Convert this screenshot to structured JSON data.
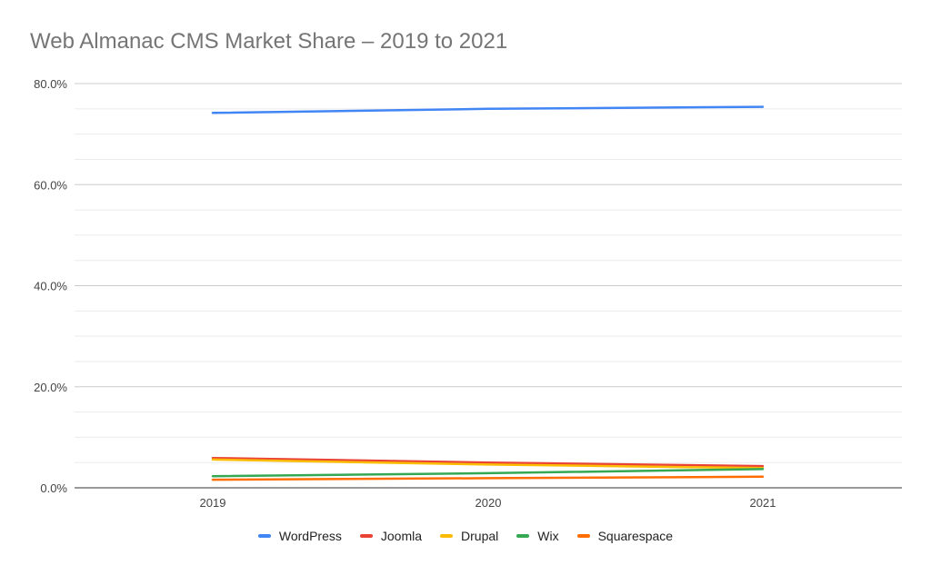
{
  "title": "Web Almanac CMS Market Share – 2019 to 2021",
  "chart_data": {
    "type": "line",
    "title": "Web Almanac CMS Market Share – 2019 to 2021",
    "xlabel": "",
    "ylabel": "",
    "categories": [
      "2019",
      "2020",
      "2021"
    ],
    "ylim": [
      0,
      80
    ],
    "yticks": [
      0,
      20,
      40,
      60,
      80
    ],
    "ytick_labels": [
      "0.0%",
      "20.0%",
      "40.0%",
      "60.0%",
      "80.0%"
    ],
    "grid": true,
    "legend_position": "bottom",
    "series": [
      {
        "name": "WordPress",
        "color": "#4285f4",
        "values": [
          74.2,
          75.0,
          75.4
        ]
      },
      {
        "name": "Joomla",
        "color": "#ea4335",
        "values": [
          5.9,
          5.0,
          4.3
        ]
      },
      {
        "name": "Drupal",
        "color": "#fbbc04",
        "values": [
          5.6,
          4.6,
          3.9
        ]
      },
      {
        "name": "Wix",
        "color": "#34a853",
        "values": [
          2.3,
          2.9,
          3.7
        ]
      },
      {
        "name": "Squarespace",
        "color": "#ff6d01",
        "values": [
          1.6,
          1.9,
          2.2
        ]
      }
    ]
  }
}
